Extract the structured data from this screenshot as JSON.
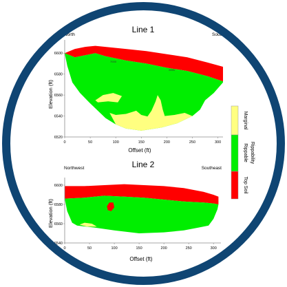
{
  "frame": {
    "ring_color": "#0f4573",
    "background": "#ffffff"
  },
  "colors": {
    "top_soil": "#ff0000",
    "rippable": "#00ee00",
    "marginal": "#ffff80",
    "axis": "#8a8a8a"
  },
  "legend": {
    "title": "Rippability",
    "items": [
      {
        "label": "Marginal",
        "color": "#ffff80"
      },
      {
        "label": "Rippable",
        "color": "#00ee00"
      },
      {
        "label": "Top Soil",
        "color": "#ff0000"
      }
    ]
  },
  "chart_data": [
    {
      "type": "area",
      "title": "Line 1",
      "left_label": "North",
      "right_label": "South",
      "xlabel": "Offset (ft)",
      "ylabel": "Elevation (ft)",
      "xlim": [
        0,
        310
      ],
      "ylim": [
        6520,
        6610
      ],
      "xticks": [
        0,
        50,
        100,
        150,
        200,
        250,
        300
      ],
      "yticks": [
        6520,
        6540,
        6560,
        6580,
        6600
      ],
      "grid": false,
      "layers": [
        {
          "name": "Top Soil",
          "color": "#ff0000",
          "top": [
            [
              0,
              6600
            ],
            [
              20,
              6604
            ],
            [
              40,
              6606
            ],
            [
              60,
              6607
            ],
            [
              80,
              6606
            ],
            [
              120,
              6604
            ],
            [
              160,
              6602
            ],
            [
              200,
              6599
            ],
            [
              240,
              6596
            ],
            [
              280,
              6591
            ],
            [
              310,
              6587
            ]
          ],
          "bottom": [
            [
              0,
              6600
            ],
            [
              20,
              6596
            ],
            [
              40,
              6598
            ],
            [
              60,
              6600
            ],
            [
              80,
              6597
            ],
            [
              120,
              6593
            ],
            [
              160,
              6590
            ],
            [
              200,
              6586
            ],
            [
              240,
              6583
            ],
            [
              280,
              6578
            ],
            [
              310,
              6573
            ]
          ]
        },
        {
          "name": "Rippable",
          "color": "#00ee00",
          "top": [
            [
              0,
              6600
            ],
            [
              20,
              6596
            ],
            [
              40,
              6598
            ],
            [
              60,
              6600
            ],
            [
              80,
              6597
            ],
            [
              120,
              6593
            ],
            [
              160,
              6590
            ],
            [
              200,
              6586
            ],
            [
              240,
              6583
            ],
            [
              280,
              6578
            ],
            [
              310,
              6573
            ]
          ],
          "bottom": [
            [
              0,
              6600
            ],
            [
              5,
              6588
            ],
            [
              15,
              6572
            ],
            [
              30,
              6562
            ],
            [
              50,
              6552
            ],
            [
              80,
              6538
            ],
            [
              100,
              6532
            ],
            [
              120,
              6528
            ],
            [
              150,
              6526
            ],
            [
              190,
              6529
            ],
            [
              220,
              6533
            ],
            [
              250,
              6540
            ],
            [
              265,
              6546
            ],
            [
              275,
              6555
            ],
            [
              292,
              6562
            ],
            [
              310,
              6572
            ]
          ]
        },
        {
          "name": "Marginal",
          "color": "#ffff80",
          "top": [
            [
              88,
              6543
            ],
            [
              100,
              6541
            ],
            [
              120,
              6542
            ],
            [
              140,
              6545
            ],
            [
              150,
              6541
            ],
            [
              175,
              6538
            ],
            [
              195,
              6540
            ],
            [
              215,
              6541
            ],
            [
              235,
              6543
            ],
            [
              250,
              6540
            ]
          ],
          "bottom": [
            [
              88,
              6543
            ],
            [
              100,
              6532
            ],
            [
              120,
              6528
            ],
            [
              150,
              6526
            ],
            [
              190,
              6529
            ],
            [
              220,
              6533
            ],
            [
              250,
              6540
            ]
          ]
        }
      ],
      "lenses": [
        {
          "layer": "Marginal",
          "outline": [
            [
              60,
              6555
            ],
            [
              75,
              6560
            ],
            [
              95,
              6562
            ],
            [
              112,
              6559
            ],
            [
              104,
              6553
            ],
            [
              85,
              6554
            ],
            [
              65,
              6553
            ]
          ]
        },
        {
          "layer": "Marginal",
          "outline": [
            [
              160,
              6538
            ],
            [
              170,
              6545
            ],
            [
              178,
              6554
            ],
            [
              182,
              6560
            ],
            [
              188,
              6555
            ],
            [
              192,
              6546
            ],
            [
              196,
              6540
            ],
            [
              172,
              6537
            ]
          ]
        }
      ],
      "annotations": [
        {
          "text": "7000",
          "x": 95,
          "y": 6591
        },
        {
          "text": "6000",
          "x": 210,
          "y": 6583
        }
      ]
    },
    {
      "type": "area",
      "title": "Line 2",
      "left_label": "Northwest",
      "right_label": "Southeast",
      "xlabel": "Offset (ft)",
      "ylabel": "Elevation (ft)",
      "xlim": [
        0,
        315
      ],
      "ylim": [
        6540,
        6605
      ],
      "xticks": [
        0,
        50,
        100,
        150,
        200,
        250,
        300
      ],
      "yticks": [
        6540,
        6560,
        6580,
        6600
      ],
      "grid": false,
      "layers": [
        {
          "name": "Top Soil",
          "color": "#ff0000",
          "top": [
            [
              0,
              6599
            ],
            [
              40,
              6599
            ],
            [
              80,
              6600
            ],
            [
              120,
              6601
            ],
            [
              160,
              6600
            ],
            [
              200,
              6599
            ],
            [
              240,
              6597
            ],
            [
              280,
              6593
            ],
            [
              300,
              6590
            ],
            [
              310,
              6588
            ]
          ],
          "bottom": [
            [
              0,
              6586
            ],
            [
              40,
              6587
            ],
            [
              80,
              6589
            ],
            [
              120,
              6588
            ],
            [
              160,
              6587
            ],
            [
              200,
              6585
            ],
            [
              240,
              6583
            ],
            [
              280,
              6582
            ],
            [
              300,
              6581
            ],
            [
              310,
              6580
            ]
          ]
        },
        {
          "name": "Rippable",
          "color": "#00ee00",
          "top": [
            [
              0,
              6586
            ],
            [
              40,
              6587
            ],
            [
              80,
              6589
            ],
            [
              120,
              6588
            ],
            [
              160,
              6587
            ],
            [
              200,
              6585
            ],
            [
              240,
              6583
            ],
            [
              280,
              6582
            ],
            [
              300,
              6581
            ],
            [
              310,
              6580
            ]
          ],
          "bottom": [
            [
              0,
              6586
            ],
            [
              5,
              6573
            ],
            [
              15,
              6561
            ],
            [
              25,
              6558
            ],
            [
              60,
              6556
            ],
            [
              100,
              6553
            ],
            [
              150,
              6550
            ],
            [
              200,
              6551
            ],
            [
              240,
              6553
            ],
            [
              270,
              6556
            ],
            [
              290,
              6558
            ],
            [
              300,
              6565
            ],
            [
              308,
              6575
            ],
            [
              310,
              6580
            ]
          ]
        },
        {
          "name": "Marginal",
          "color": "#ffff80",
          "top": [
            [
              30,
              6559
            ],
            [
              40,
              6561
            ],
            [
              55,
              6560
            ],
            [
              65,
              6557
            ]
          ],
          "bottom": [
            [
              30,
              6559
            ],
            [
              45,
              6557
            ],
            [
              65,
              6557
            ]
          ]
        }
      ],
      "lenses": [
        {
          "layer": "Top Soil",
          "outline": [
            [
              85,
              6578
            ],
            [
              90,
              6582
            ],
            [
              98,
              6582
            ],
            [
              100,
              6577
            ],
            [
              94,
              6573
            ],
            [
              87,
              6574
            ]
          ]
        }
      ],
      "annotations": []
    }
  ]
}
